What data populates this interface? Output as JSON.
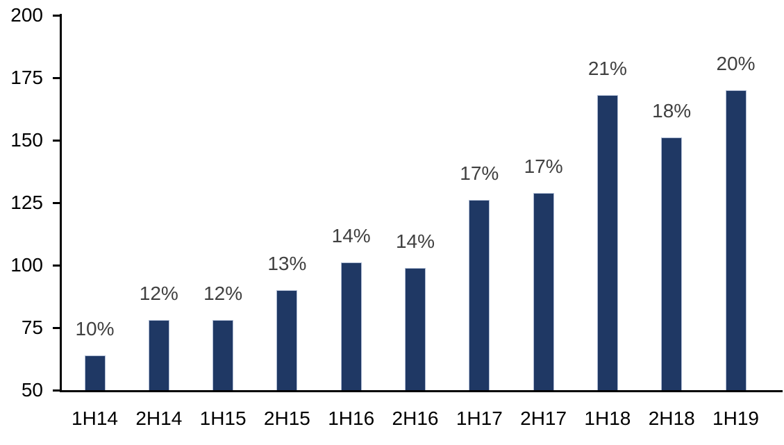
{
  "chart_data": {
    "type": "bar",
    "title": "",
    "xlabel": "",
    "ylabel": "",
    "categories": [
      "1H14",
      "2H14",
      "1H15",
      "2H15",
      "1H16",
      "2H16",
      "1H17",
      "2H17",
      "1H18",
      "2H18",
      "1H19"
    ],
    "values": [
      64,
      78,
      78,
      90,
      101,
      99,
      126,
      129,
      168,
      151,
      170
    ],
    "bar_labels": [
      "10%",
      "12%",
      "12%",
      "13%",
      "14%",
      "14%",
      "17%",
      "17%",
      "21%",
      "18%",
      "20%"
    ],
    "ylim": [
      50,
      200
    ],
    "yticks": [
      50,
      75,
      100,
      125,
      150,
      175,
      200
    ],
    "grid": false,
    "legend_position": "none",
    "colors": {
      "bar_fill": "#1F3864",
      "bar_edge": "#AEBBD3",
      "data_label": "#404040",
      "axis": "#000000",
      "tick_label": "#000000",
      "background": "#FFFFFF"
    }
  }
}
